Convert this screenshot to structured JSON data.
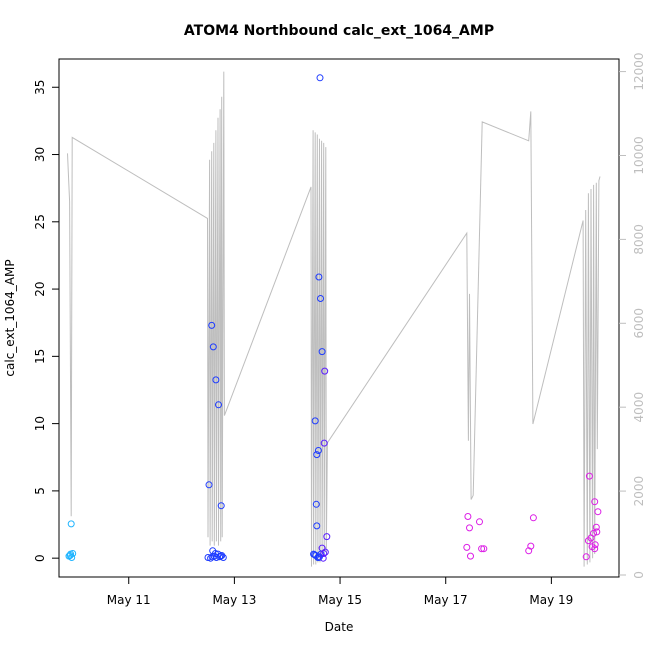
{
  "chart_data": {
    "type": "scatter",
    "title": "ATOM4 Northbound calc_ext_1064_AMP",
    "xlabel": "Date",
    "ylabel": "calc_ext_1064_AMP",
    "x_ticks": [
      "May 11",
      "May 13",
      "May 15",
      "May 17",
      "May 19"
    ],
    "x_tick_days": [
      11,
      13,
      15,
      17,
      19
    ],
    "xlim_days": [
      9.68,
      20.28
    ],
    "ylim": [
      -1.4,
      37.1
    ],
    "y_ticks": [
      0,
      5,
      10,
      15,
      20,
      25,
      30,
      35
    ],
    "right_axis": {
      "ylim": [
        -48,
        12300
      ],
      "ticks": [
        0,
        2000,
        4000,
        6000,
        8000,
        10000,
        12000
      ],
      "color": "#bebebe"
    },
    "colors": {
      "cyan": "#1eb4ff",
      "blue": "#1e3cff",
      "indigo": "#5a1eff",
      "magenta": "#dc1ee6",
      "trace": "#bebebe"
    },
    "series": [
      {
        "values": [
          {
            "x": 9.87,
            "y": 0.15,
            "c": "cyan"
          },
          {
            "x": 9.9,
            "y": 0.3,
            "c": "cyan"
          },
          {
            "x": 9.92,
            "y": 0.05,
            "c": "cyan"
          },
          {
            "x": 9.94,
            "y": 0.35,
            "c": "cyan"
          },
          {
            "x": 9.89,
            "y": 0.2,
            "c": "cyan"
          },
          {
            "x": 9.91,
            "y": 2.55,
            "c": "cyan"
          },
          {
            "x": 12.52,
            "y": 5.45,
            "c": "blue"
          },
          {
            "x": 12.57,
            "y": 17.3,
            "c": "blue"
          },
          {
            "x": 12.6,
            "y": 15.7,
            "c": "blue"
          },
          {
            "x": 12.65,
            "y": 13.25,
            "c": "blue"
          },
          {
            "x": 12.7,
            "y": 11.4,
            "c": "blue"
          },
          {
            "x": 12.75,
            "y": 3.9,
            "c": "blue"
          },
          {
            "x": 12.5,
            "y": 0.05,
            "c": "blue"
          },
          {
            "x": 12.55,
            "y": 0.0,
            "c": "blue"
          },
          {
            "x": 12.59,
            "y": 0.55,
            "c": "blue"
          },
          {
            "x": 12.62,
            "y": 0.15,
            "c": "blue"
          },
          {
            "x": 12.66,
            "y": 0.05,
            "c": "blue"
          },
          {
            "x": 12.69,
            "y": 0.3,
            "c": "blue"
          },
          {
            "x": 12.72,
            "y": 0.1,
            "c": "blue"
          },
          {
            "x": 12.76,
            "y": 0.2,
            "c": "blue"
          },
          {
            "x": 12.79,
            "y": 0.05,
            "c": "blue"
          },
          {
            "x": 12.58,
            "y": 0.1,
            "c": "blue"
          },
          {
            "x": 12.64,
            "y": 0.35,
            "c": "blue"
          },
          {
            "x": 12.74,
            "y": 0.15,
            "c": "blue"
          },
          {
            "x": 14.53,
            "y": 10.2,
            "c": "blue"
          },
          {
            "x": 14.56,
            "y": 7.7,
            "c": "blue"
          },
          {
            "x": 14.59,
            "y": 8.0,
            "c": "blue"
          },
          {
            "x": 14.55,
            "y": 4.0,
            "c": "blue"
          },
          {
            "x": 14.56,
            "y": 2.4,
            "c": "blue"
          },
          {
            "x": 14.6,
            "y": 20.9,
            "c": "blue"
          },
          {
            "x": 14.63,
            "y": 19.3,
            "c": "blue"
          },
          {
            "x": 14.62,
            "y": 35.7,
            "c": "blue"
          },
          {
            "x": 14.66,
            "y": 15.35,
            "c": "blue"
          },
          {
            "x": 14.71,
            "y": 13.9,
            "c": "indigo"
          },
          {
            "x": 14.7,
            "y": 8.55,
            "c": "indigo"
          },
          {
            "x": 14.75,
            "y": 1.6,
            "c": "indigo"
          },
          {
            "x": 14.66,
            "y": 0.75,
            "c": "indigo"
          },
          {
            "x": 14.5,
            "y": 0.3,
            "c": "blue"
          },
          {
            "x": 14.54,
            "y": 0.2,
            "c": "blue"
          },
          {
            "x": 14.58,
            "y": 0.05,
            "c": "blue"
          },
          {
            "x": 14.61,
            "y": 0.1,
            "c": "blue"
          },
          {
            "x": 14.64,
            "y": 0.3,
            "c": "blue"
          },
          {
            "x": 14.68,
            "y": 0.0,
            "c": "indigo"
          },
          {
            "x": 14.72,
            "y": 0.45,
            "c": "indigo"
          },
          {
            "x": 14.52,
            "y": 0.25,
            "c": "blue"
          },
          {
            "x": 14.69,
            "y": 0.35,
            "c": "indigo"
          },
          {
            "x": 14.6,
            "y": 0.05,
            "c": "blue"
          },
          {
            "x": 17.42,
            "y": 3.1,
            "c": "magenta"
          },
          {
            "x": 17.45,
            "y": 2.25,
            "c": "magenta"
          },
          {
            "x": 17.4,
            "y": 0.8,
            "c": "magenta"
          },
          {
            "x": 17.47,
            "y": 0.15,
            "c": "magenta"
          },
          {
            "x": 17.64,
            "y": 2.7,
            "c": "magenta"
          },
          {
            "x": 17.68,
            "y": 0.7,
            "c": "magenta"
          },
          {
            "x": 17.72,
            "y": 0.7,
            "c": "magenta"
          },
          {
            "x": 18.57,
            "y": 0.55,
            "c": "magenta"
          },
          {
            "x": 18.61,
            "y": 0.9,
            "c": "magenta"
          },
          {
            "x": 18.66,
            "y": 3.0,
            "c": "magenta"
          },
          {
            "x": 19.72,
            "y": 6.1,
            "c": "magenta"
          },
          {
            "x": 19.82,
            "y": 4.2,
            "c": "magenta"
          },
          {
            "x": 19.88,
            "y": 3.45,
            "c": "magenta"
          },
          {
            "x": 19.85,
            "y": 2.3,
            "c": "magenta"
          },
          {
            "x": 19.8,
            "y": 1.85,
            "c": "magenta"
          },
          {
            "x": 19.86,
            "y": 1.95,
            "c": "magenta"
          },
          {
            "x": 19.75,
            "y": 1.5,
            "c": "magenta"
          },
          {
            "x": 19.7,
            "y": 1.3,
            "c": "magenta"
          },
          {
            "x": 19.83,
            "y": 1.0,
            "c": "magenta"
          },
          {
            "x": 19.77,
            "y": 0.85,
            "c": "magenta"
          },
          {
            "x": 19.82,
            "y": 0.7,
            "c": "magenta"
          },
          {
            "x": 19.66,
            "y": 0.1,
            "c": "magenta"
          }
        ]
      },
      {
        "axis": "right",
        "x": [
          9.84,
          9.88,
          9.91,
          9.93,
          12.49,
          12.5,
          12.53,
          12.54,
          12.57,
          12.58,
          12.61,
          12.62,
          12.65,
          12.66,
          12.69,
          12.7,
          12.73,
          12.74,
          12.76,
          12.77,
          12.8,
          12.81,
          14.45,
          14.46,
          14.49,
          14.5,
          14.53,
          14.54,
          14.57,
          14.58,
          14.61,
          14.62,
          14.65,
          14.66,
          14.69,
          14.7,
          14.73,
          14.74,
          14.76,
          17.4,
          17.43,
          17.45,
          17.48,
          17.52,
          17.69,
          18.57,
          18.61,
          18.65,
          19.6,
          19.62,
          19.65,
          19.68,
          19.7,
          19.73,
          19.75,
          19.78,
          19.8,
          19.82,
          19.85,
          19.87,
          19.9,
          19.92
        ],
        "y": [
          10050,
          8900,
          1400,
          10430,
          8500,
          900,
          9900,
          700,
          10100,
          800,
          10300,
          700,
          10600,
          800,
          10900,
          700,
          11100,
          800,
          11400,
          900,
          12000,
          3800,
          9250,
          200,
          10600,
          250,
          10550,
          250,
          10500,
          300,
          10400,
          300,
          10350,
          400,
          10300,
          500,
          10200,
          550,
          3150,
          8150,
          3200,
          6700,
          1800,
          1900,
          10800,
          10350,
          11050,
          3600,
          8450,
          200,
          8700,
          250,
          9100,
          300,
          9200,
          400,
          9300,
          500,
          9350,
          3000,
          9400,
          9500
        ]
      }
    ]
  }
}
